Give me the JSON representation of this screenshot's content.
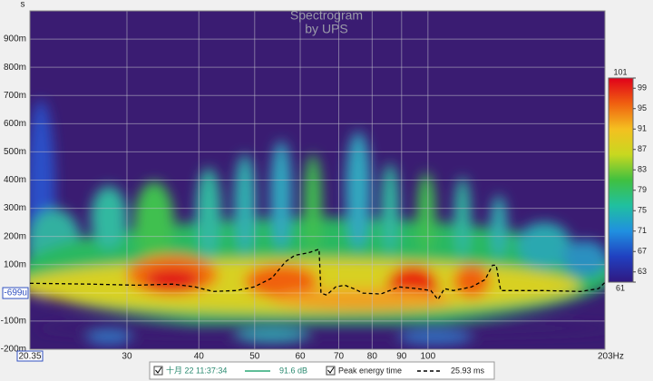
{
  "chart_data": {
    "type": "spectrogram",
    "title": "Spectrogram",
    "subtitle": "by UPS",
    "y_unit": "s",
    "xscale": "log",
    "xlim": [
      20.35,
      203
    ],
    "xticks": [
      {
        "value": 20.35,
        "label": "20.35"
      },
      30,
      40,
      50,
      60,
      70,
      80,
      90,
      100,
      {
        "value": 203,
        "label": "203Hz"
      }
    ],
    "ylim": [
      -0.2,
      1.0
    ],
    "yticks": [
      {
        "value": 0.9,
        "label": "900m"
      },
      {
        "value": 0.8,
        "label": "800m"
      },
      {
        "value": 0.7,
        "label": "700m"
      },
      {
        "value": 0.6,
        "label": "600m"
      },
      {
        "value": 0.5,
        "label": "500m"
      },
      {
        "value": 0.4,
        "label": "400m"
      },
      {
        "value": 0.3,
        "label": "300m"
      },
      {
        "value": 0.2,
        "label": "200m"
      },
      {
        "value": 0.1,
        "label": "100m"
      },
      {
        "value": -0.1,
        "label": "-100m"
      },
      {
        "value": -0.2,
        "label": "-200m"
      }
    ],
    "cursor_y": {
      "value": -0.000699,
      "label": "-699u"
    },
    "grid": true,
    "colorbar": {
      "clim": [
        61,
        101
      ],
      "ticks": [
        101,
        99,
        95,
        91,
        87,
        83,
        79,
        75,
        71,
        67,
        63,
        61
      ],
      "colors": [
        "#e0001a",
        "#f06010",
        "#f4c020",
        "#c8d820",
        "#40c040",
        "#20c0a0",
        "#2090e0",
        "#2040c0",
        "#301880"
      ]
    },
    "series": [
      {
        "name": "Peak energy time",
        "color": "#000000",
        "x": [
          20.35,
          25.9,
          31.1,
          36.0,
          39.4,
          42.3,
          46.4,
          49.9,
          53.6,
          56.6,
          58.7,
          62.0,
          64.7,
          65.2,
          66.7,
          69.1,
          71.7,
          74.3,
          77.1,
          82.8,
          89.1,
          95.8,
          101.2,
          104.1,
          106.8,
          110.7,
          119.1,
          125.7,
          129.5,
          131.4,
          133.8,
          137.7,
          159.2,
          184.1,
          197.9,
          203
        ],
        "values": [
          0.034,
          0.031,
          0.027,
          0.031,
          0.021,
          0.005,
          0.008,
          0.021,
          0.053,
          0.111,
          0.133,
          0.142,
          0.155,
          -0.001,
          -0.008,
          0.021,
          0.027,
          0.015,
          -0.001,
          -0.004,
          0.021,
          0.015,
          0.008,
          -0.024,
          0.015,
          0.008,
          0.021,
          0.047,
          0.098,
          0.098,
          0.008,
          0.008,
          0.008,
          0.005,
          0.015,
          0.037
        ]
      }
    ],
    "legend": [
      {
        "label": "十月 22 11:37:34",
        "value_text": "91.6 dB",
        "color": "#2aa876"
      },
      {
        "value_text": "25.93 ms"
      }
    ]
  }
}
